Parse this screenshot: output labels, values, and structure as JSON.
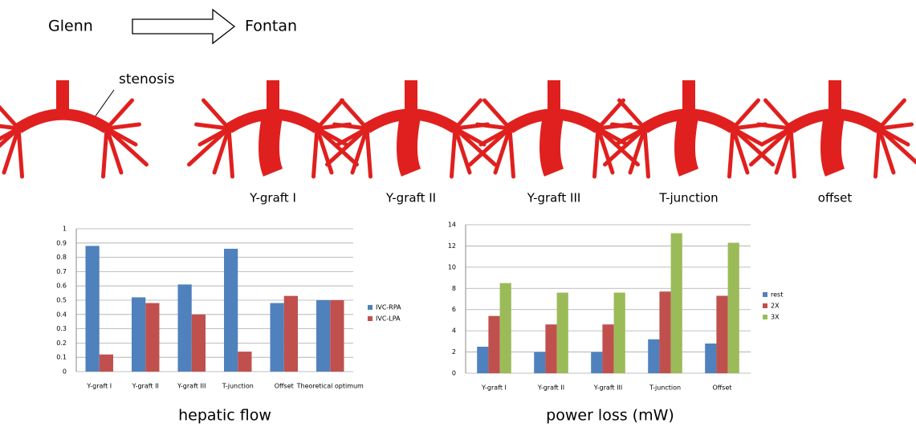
{
  "figure": {
    "before": "Glenn",
    "after": "Fontan",
    "annotation": "stenosis",
    "models": [
      "Y-graft I",
      "Y-graft II",
      "Y-graft III",
      "T-junction",
      "offset"
    ]
  },
  "chart_data": [
    {
      "type": "bar",
      "xlabel": "hepatic flow",
      "categories": [
        "Y-graft I",
        "Y-graft II",
        "Y-graft III",
        "T-junction",
        "Offset",
        "Theoretical optimum"
      ],
      "series": [
        {
          "name": "IVC-RPA",
          "color": "#4f81bd",
          "values": [
            0.88,
            0.52,
            0.61,
            0.86,
            0.48,
            0.5
          ]
        },
        {
          "name": "IVC-LPA",
          "color": "#c0504d",
          "values": [
            0.12,
            0.48,
            0.4,
            0.14,
            0.53,
            0.5
          ]
        }
      ],
      "ylim": [
        0,
        1
      ],
      "yticks": [
        0,
        0.1,
        0.2,
        0.3,
        0.4,
        0.5,
        0.6,
        0.7,
        0.8,
        0.9,
        1
      ],
      "grid": true,
      "legend": "right"
    },
    {
      "type": "bar",
      "xlabel": "power loss (mW)",
      "categories": [
        "Y-graft I",
        "Y-graft II",
        "Y-graft III",
        "T-junction",
        "Offset"
      ],
      "series": [
        {
          "name": "rest",
          "color": "#4f81bd",
          "values": [
            2.5,
            2.0,
            2.0,
            3.2,
            2.8
          ]
        },
        {
          "name": "2X",
          "color": "#c0504d",
          "values": [
            5.4,
            4.6,
            4.6,
            7.7,
            7.3
          ]
        },
        {
          "name": "3X",
          "color": "#9bbb59",
          "values": [
            8.5,
            7.6,
            7.6,
            13.2,
            12.3
          ]
        }
      ],
      "ylim": [
        0,
        14
      ],
      "yticks": [
        0,
        2,
        4,
        6,
        8,
        10,
        12,
        14
      ],
      "grid": true,
      "legend": "right"
    }
  ]
}
